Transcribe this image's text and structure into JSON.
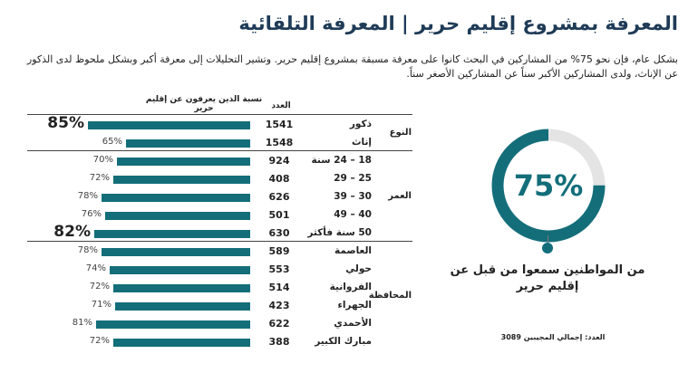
{
  "title": "المعرفة بمشروع إقليم حرير | المعرفة التلقائية",
  "subtitle": "بشكل عام، فإن نحو 75% من المشاركين في البحث كانوا على معرفة مسبقة بمشروع إقليم حرير. وتشير التحليلات إلى معرفة أكبر وبشكل ملحوظ لدى الذكور عن الإناث، ولدى المشاركين الأكبر سناً عن المشاركين الأصغر سناً.",
  "table_header": {
    "bar_col": "نسبة الذين يعرفون عن إقليم حرير",
    "n_col": "العدد"
  },
  "chart_data": [
    {
      "type": "bar",
      "orientation": "horizontal",
      "xlim": [
        0,
        100
      ],
      "groups": [
        {
          "name": "النوع",
          "rows": [
            {
              "label": "ذكور",
              "n": 1541,
              "value": 85,
              "highlight": true
            },
            {
              "label": "إناث",
              "n": 1548,
              "value": 65,
              "highlight": false
            }
          ]
        },
        {
          "name": "العمر",
          "rows": [
            {
              "label": "18 – 24 سنة",
              "n": 924,
              "value": 70,
              "highlight": false
            },
            {
              "label": "25 – 29",
              "n": 408,
              "value": 72,
              "highlight": false
            },
            {
              "label": "30 – 39",
              "n": 626,
              "value": 78,
              "highlight": false
            },
            {
              "label": "40 – 49",
              "n": 501,
              "value": 76,
              "highlight": false
            },
            {
              "label": "50 سنة فأكثر",
              "n": 630,
              "value": 82,
              "highlight": true
            }
          ]
        },
        {
          "name": "المحافظة",
          "rows": [
            {
              "label": "العاصمة",
              "n": 589,
              "value": 78,
              "highlight": false
            },
            {
              "label": "حولي",
              "n": 553,
              "value": 74,
              "highlight": false
            },
            {
              "label": "الفروانية",
              "n": 514,
              "value": 72,
              "highlight": false
            },
            {
              "label": "الجهراء",
              "n": 423,
              "value": 71,
              "highlight": false
            },
            {
              "label": "الأحمدي",
              "n": 622,
              "value": 81,
              "highlight": false
            },
            {
              "label": "مبارك الكبير",
              "n": 388,
              "value": 72,
              "highlight": false
            }
          ]
        }
      ],
      "bar_color": "#136e7a"
    },
    {
      "type": "pie",
      "style": "donut",
      "value": 75,
      "value_label": "75%",
      "caption": "من المواطنين سمعوا من قبل عن إقليم حرير",
      "footnote": "العدد: إجمالي المجيبين 3089",
      "filled_color": "#136e7a",
      "remaining_color": "#e4e4e4"
    }
  ]
}
